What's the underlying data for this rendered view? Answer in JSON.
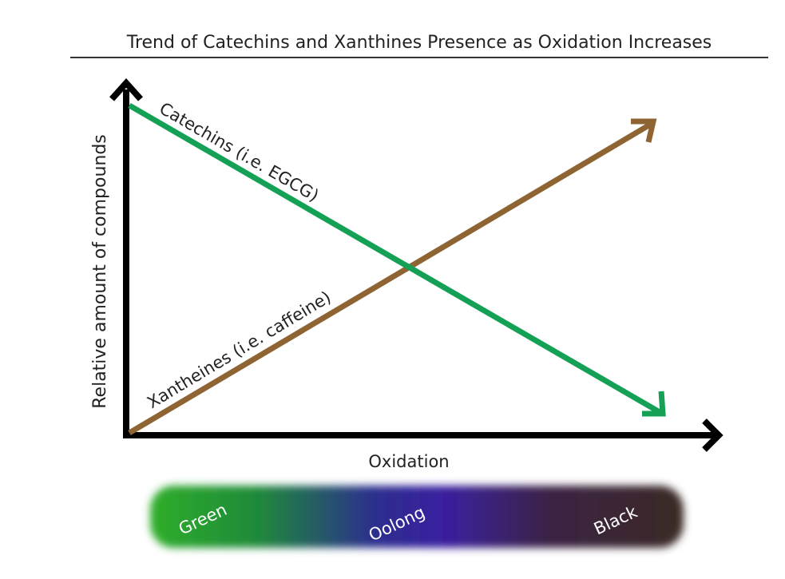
{
  "title": "Trend of Catechins and Xanthines Presence as Oxidation Increases",
  "axes": {
    "y_label": "Relative amount of compounds",
    "x_label": "Oxidation"
  },
  "lines": [
    {
      "label": "Catechins (i.e. EGCG)"
    },
    {
      "label": "Xantheines (i.e. caffeine)"
    }
  ],
  "oxidation_scale": {
    "labels": [
      "Green",
      "Oolong",
      "Black"
    ]
  }
}
